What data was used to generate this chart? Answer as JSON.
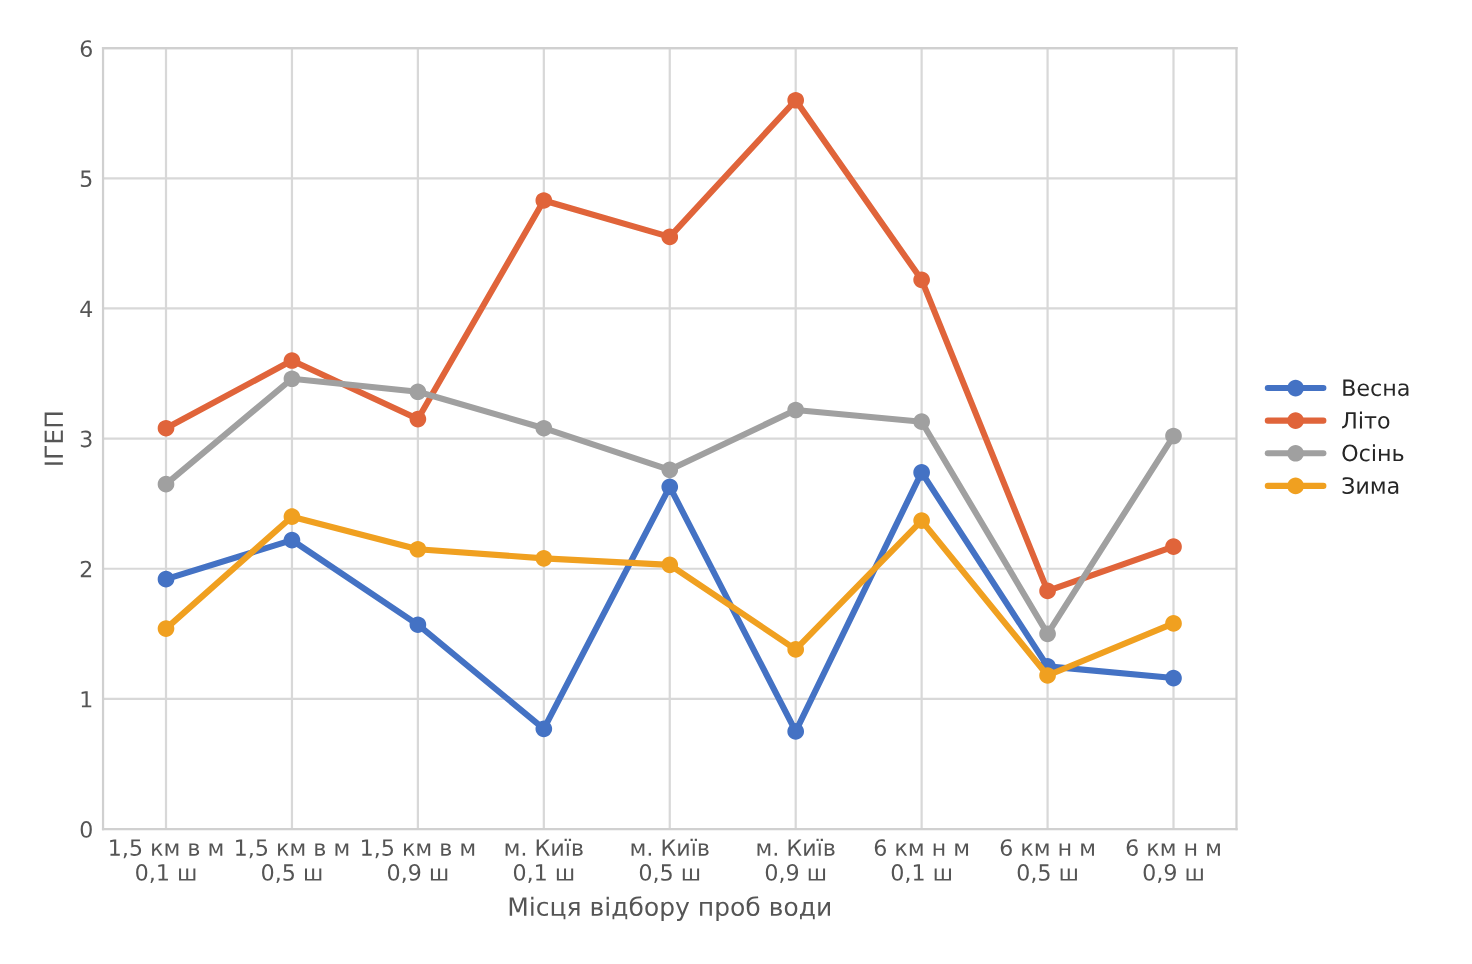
{
  "chart_data": {
    "type": "line",
    "xlabel": "Місця відбору проб води",
    "ylabel": "ІГЕП",
    "categories": [
      "1,5 км в м\n0,1 ш",
      "1,5 км в м\n0,5 ш",
      "1,5 км в м\n0,9 ш",
      "м. Київ\n0,1 ш",
      "м. Київ\n0,5 ш",
      "м. Київ\n0,9 ш",
      "6 км н м\n0,1 ш",
      "6 км н м\n0,5 ш",
      "6 км н м\n0,9 ш"
    ],
    "series": [
      {
        "name": "Весна",
        "color": "#4472c4",
        "values": [
          1.92,
          2.22,
          1.57,
          0.77,
          2.63,
          0.75,
          2.74,
          1.25,
          1.16
        ]
      },
      {
        "name": "Літо",
        "color": "#e0643a",
        "values": [
          3.08,
          3.6,
          3.15,
          4.83,
          4.55,
          5.6,
          4.22,
          1.83,
          2.17
        ]
      },
      {
        "name": "Осінь",
        "color": "#a0a0a0",
        "values": [
          2.65,
          3.46,
          3.36,
          3.08,
          2.76,
          3.22,
          3.13,
          1.5,
          3.02
        ]
      },
      {
        "name": "Зима",
        "color": "#f0a020",
        "values": [
          1.54,
          2.4,
          2.15,
          2.08,
          2.03,
          1.38,
          2.37,
          1.18,
          1.58
        ]
      }
    ],
    "ylim": [
      0,
      6
    ],
    "yticks": [
      0,
      1,
      2,
      3,
      4,
      5,
      6
    ],
    "grid": true,
    "legend": "right",
    "marker": "circle",
    "line_style": "solid"
  }
}
